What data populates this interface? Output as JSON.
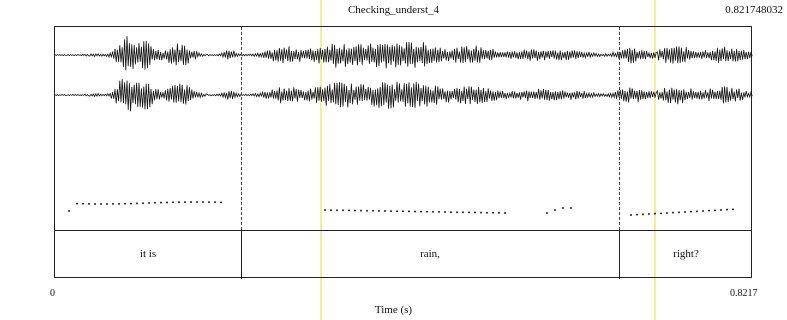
{
  "window": {
    "title": "Checking_underst_4",
    "end_time": "0.821748032"
  },
  "tier": {
    "intervals": [
      {
        "label": "it is",
        "start": 0,
        "end": 0.209
      },
      {
        "label": "rain,",
        "start": 0.209,
        "end": 0.635
      },
      {
        "label": "right?",
        "start": 0.635,
        "end": 0.8217
      }
    ]
  },
  "axis": {
    "start_label": "0",
    "end_label": "0.8217",
    "xlabel": "Time (s)"
  },
  "colors": {
    "highlight": "#f3ee9a",
    "waveform": "#111111"
  }
}
